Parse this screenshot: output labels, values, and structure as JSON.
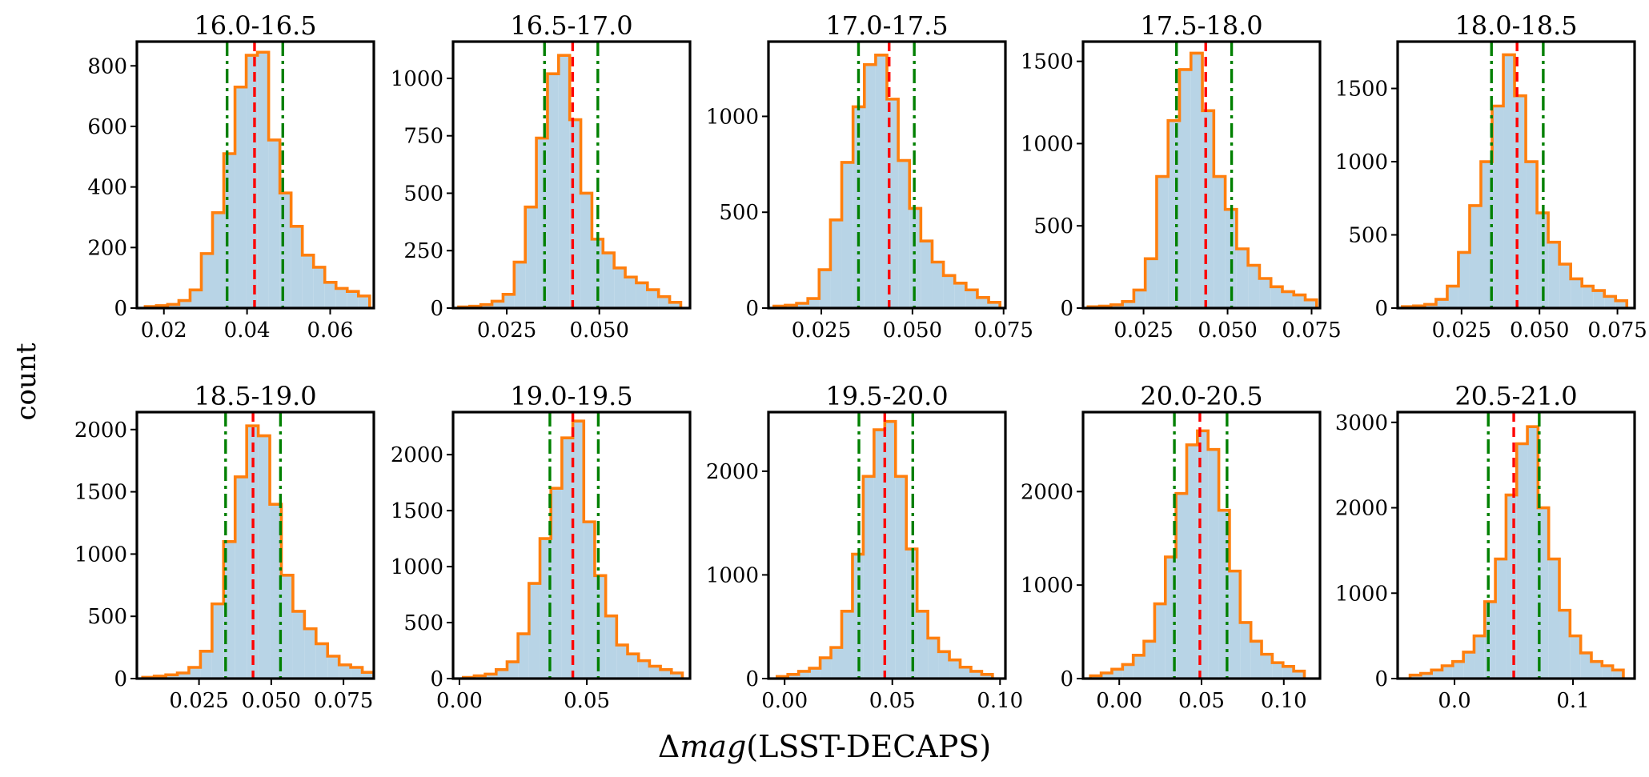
{
  "figure": {
    "ylabel": "count",
    "xlabel": "Δmag(LSST-DECAPS)",
    "xlabel_prefix": "Δ",
    "xlabel_italic": "mag",
    "xlabel_suffix": "(LSST-DECAPS)"
  },
  "colors": {
    "fill": "#b8d4e6",
    "step": "#ff7f0e",
    "median": "#ff0000",
    "bounds": "#008000",
    "frame": "#000000"
  },
  "chart_data": [
    {
      "type": "bar",
      "title": "16.0-16.5",
      "xlim": [
        0.0135,
        0.0705
      ],
      "ylim": [
        0,
        880
      ],
      "xticks": [
        0.02,
        0.04,
        0.06
      ],
      "xtick_labels": [
        "0.02",
        "0.04",
        "0.06"
      ],
      "yticks": [
        0,
        200,
        400,
        600,
        800
      ],
      "ytick_labels": [
        "0",
        "200",
        "400",
        "600",
        "800"
      ],
      "bin_edges": [
        0.0155,
        0.0182,
        0.0209,
        0.0236,
        0.0263,
        0.029,
        0.0317,
        0.0344,
        0.0371,
        0.0398,
        0.0425,
        0.0452,
        0.0479,
        0.0506,
        0.0533,
        0.056,
        0.0587,
        0.0614,
        0.0641,
        0.0668,
        0.0695
      ],
      "counts": [
        5,
        8,
        12,
        25,
        60,
        180,
        315,
        510,
        730,
        835,
        845,
        555,
        380,
        270,
        175,
        135,
        85,
        65,
        55,
        40
      ],
      "median": 0.0418,
      "lower": 0.0352,
      "upper": 0.0486
    },
    {
      "type": "bar",
      "title": "16.5-17.0",
      "xlim": [
        0.0105,
        0.0745
      ],
      "ylim": [
        0,
        1160
      ],
      "xticks": [
        0.025,
        0.05
      ],
      "xtick_labels": [
        "0.025",
        "0.050"
      ],
      "yticks": [
        0,
        250,
        500,
        750,
        1000
      ],
      "ytick_labels": [
        "0",
        "250",
        "500",
        "750",
        "1000"
      ],
      "bin_edges": [
        0.012,
        0.015,
        0.018,
        0.021,
        0.024,
        0.027,
        0.03,
        0.033,
        0.036,
        0.039,
        0.042,
        0.045,
        0.048,
        0.051,
        0.054,
        0.057,
        0.06,
        0.063,
        0.066,
        0.069,
        0.072
      ],
      "counts": [
        5,
        8,
        15,
        30,
        60,
        200,
        440,
        740,
        1020,
        1100,
        820,
        500,
        300,
        240,
        175,
        135,
        110,
        80,
        50,
        25
      ],
      "median": 0.0428,
      "lower": 0.0352,
      "upper": 0.0496
    },
    {
      "type": "bar",
      "title": "17.0-17.5",
      "xlim": [
        0.0105,
        0.0755
      ],
      "ylim": [
        0,
        1390
      ],
      "xticks": [
        0.025,
        0.05,
        0.075
      ],
      "xtick_labels": [
        "0.025",
        "0.050",
        "0.075"
      ],
      "yticks": [
        0,
        500,
        1000
      ],
      "ytick_labels": [
        "0",
        "500",
        "1000"
      ],
      "bin_edges": [
        0.012,
        0.0151,
        0.0182,
        0.0213,
        0.0244,
        0.0275,
        0.0306,
        0.0337,
        0.0368,
        0.0399,
        0.043,
        0.0461,
        0.0492,
        0.0523,
        0.0554,
        0.0585,
        0.0616,
        0.0647,
        0.0678,
        0.0709,
        0.074
      ],
      "counts": [
        10,
        15,
        25,
        50,
        200,
        460,
        760,
        1050,
        1270,
        1320,
        1090,
        770,
        520,
        350,
        240,
        170,
        130,
        95,
        55,
        30
      ],
      "median": 0.0436,
      "lower": 0.0352,
      "upper": 0.0505
    },
    {
      "type": "bar",
      "title": "17.5-18.0",
      "xlim": [
        0.007,
        0.0775
      ],
      "ylim": [
        0,
        1620
      ],
      "xticks": [
        0.025,
        0.05,
        0.075
      ],
      "xtick_labels": [
        "0.025",
        "0.050",
        "0.075"
      ],
      "yticks": [
        0,
        500,
        1000,
        1500
      ],
      "ytick_labels": [
        "0",
        "500",
        "1000",
        "1500"
      ],
      "bin_edges": [
        0.0085,
        0.0119,
        0.0153,
        0.0187,
        0.0221,
        0.0255,
        0.0289,
        0.0323,
        0.0357,
        0.0391,
        0.0425,
        0.0459,
        0.0493,
        0.0527,
        0.0561,
        0.0595,
        0.0629,
        0.0663,
        0.0697,
        0.0731,
        0.0765
      ],
      "counts": [
        8,
        12,
        20,
        40,
        110,
        300,
        800,
        1140,
        1450,
        1550,
        1200,
        800,
        600,
        360,
        260,
        180,
        130,
        100,
        80,
        50
      ],
      "median": 0.0435,
      "lower": 0.0348,
      "upper": 0.0512
    },
    {
      "type": "bar",
      "title": "18.0-18.5",
      "xlim": [
        0.0045,
        0.0805
      ],
      "ylim": [
        0,
        1820
      ],
      "xticks": [
        0.025,
        0.05,
        0.075
      ],
      "xtick_labels": [
        "0.025",
        "0.050",
        "0.075"
      ],
      "yticks": [
        0,
        500,
        1000,
        1500
      ],
      "ytick_labels": [
        "0",
        "500",
        "1000",
        "1500"
      ],
      "bin_edges": [
        0.006,
        0.0096,
        0.0132,
        0.0168,
        0.0204,
        0.024,
        0.0276,
        0.0312,
        0.0348,
        0.0384,
        0.042,
        0.0456,
        0.0492,
        0.0528,
        0.0564,
        0.06,
        0.0636,
        0.0672,
        0.0708,
        0.0744,
        0.078
      ],
      "counts": [
        10,
        15,
        25,
        60,
        150,
        380,
        700,
        1000,
        1380,
        1730,
        1450,
        1000,
        650,
        450,
        300,
        200,
        150,
        120,
        80,
        50
      ],
      "median": 0.0428,
      "lower": 0.0346,
      "upper": 0.0512
    },
    {
      "type": "bar",
      "title": "18.5-19.0",
      "xlim": [
        0.0035,
        0.0855
      ],
      "ylim": [
        0,
        2140
      ],
      "xticks": [
        0.025,
        0.05,
        0.075
      ],
      "xtick_labels": [
        "0.025",
        "0.050",
        "0.075"
      ],
      "yticks": [
        0,
        500,
        1000,
        1500,
        2000
      ],
      "ytick_labels": [
        "0",
        "500",
        "1000",
        "1500",
        "2000"
      ],
      "bin_edges": [
        0.0055,
        0.0095,
        0.0135,
        0.0175,
        0.0215,
        0.0255,
        0.0295,
        0.0335,
        0.0375,
        0.0415,
        0.0455,
        0.0495,
        0.0535,
        0.0575,
        0.0615,
        0.0655,
        0.0695,
        0.0735,
        0.0775,
        0.0815,
        0.0855
      ],
      "counts": [
        10,
        20,
        30,
        45,
        90,
        220,
        600,
        1100,
        1620,
        2030,
        1950,
        1400,
        830,
        540,
        400,
        280,
        180,
        110,
        90,
        50
      ],
      "median": 0.0437,
      "lower": 0.0342,
      "upper": 0.0532
    },
    {
      "type": "bar",
      "title": "19.0-19.5",
      "xlim": [
        -0.0025,
        0.0905
      ],
      "ylim": [
        0,
        2380
      ],
      "xticks": [
        0.0,
        0.05
      ],
      "xtick_labels": [
        "0.00",
        "0.05"
      ],
      "yticks": [
        0,
        500,
        1000,
        1500,
        2000
      ],
      "ytick_labels": [
        "0",
        "500",
        "1000",
        "1500",
        "2000"
      ],
      "bin_edges": [
        0.0015,
        0.0058,
        0.0101,
        0.0144,
        0.0187,
        0.023,
        0.0273,
        0.0316,
        0.0359,
        0.0402,
        0.0445,
        0.0488,
        0.0531,
        0.0574,
        0.0617,
        0.066,
        0.0703,
        0.0746,
        0.0789,
        0.0832,
        0.0875
      ],
      "counts": [
        10,
        25,
        40,
        80,
        150,
        400,
        850,
        1250,
        1700,
        2150,
        2300,
        1400,
        920,
        560,
        300,
        220,
        160,
        110,
        80,
        50
      ],
      "median": 0.0445,
      "lower": 0.0355,
      "upper": 0.0545
    },
    {
      "type": "bar",
      "title": "19.5-20.0",
      "xlim": [
        -0.0075,
        0.1025
      ],
      "ylim": [
        0,
        2570
      ],
      "xticks": [
        0.0,
        0.05,
        0.1
      ],
      "xtick_labels": [
        "0.00",
        "0.05",
        "0.10"
      ],
      "yticks": [
        0,
        1000,
        2000
      ],
      "ytick_labels": [
        "0",
        "1000",
        "2000"
      ],
      "bin_edges": [
        -0.0035,
        0.0015,
        0.0065,
        0.0115,
        0.0165,
        0.0215,
        0.0265,
        0.0315,
        0.0365,
        0.0415,
        0.0465,
        0.0515,
        0.0565,
        0.0615,
        0.0665,
        0.0715,
        0.0765,
        0.0815,
        0.0865,
        0.0915,
        0.0965
      ],
      "counts": [
        20,
        40,
        70,
        100,
        200,
        300,
        650,
        1200,
        1950,
        2400,
        2480,
        1950,
        1250,
        650,
        390,
        260,
        180,
        110,
        70,
        40
      ],
      "median": 0.0465,
      "lower": 0.0345,
      "upper": 0.0595
    },
    {
      "type": "bar",
      "title": "20.0-20.5",
      "xlim": [
        -0.022,
        0.122
      ],
      "ylim": [
        0,
        2850
      ],
      "xticks": [
        0.0,
        0.05,
        0.1
      ],
      "xtick_labels": [
        "0.00",
        "0.05",
        "0.10"
      ],
      "yticks": [
        0,
        1000,
        2000
      ],
      "ytick_labels": [
        "0",
        "1000",
        "2000"
      ],
      "bin_edges": [
        -0.0175,
        -0.011,
        -0.0045,
        0.002,
        0.0085,
        0.015,
        0.0215,
        0.028,
        0.0345,
        0.041,
        0.0475,
        0.054,
        0.0605,
        0.067,
        0.0735,
        0.08,
        0.0865,
        0.093,
        0.0995,
        0.106,
        0.1125
      ],
      "counts": [
        30,
        60,
        100,
        150,
        250,
        400,
        800,
        1300,
        1980,
        2500,
        2650,
        2450,
        1800,
        1150,
        600,
        400,
        260,
        170,
        130,
        80
      ],
      "median": 0.049,
      "lower": 0.0335,
      "upper": 0.0655
    },
    {
      "type": "bar",
      "title": "20.5-21.0",
      "xlim": [
        -0.048,
        0.152
      ],
      "ylim": [
        0,
        3120
      ],
      "xticks": [
        0.0,
        0.1
      ],
      "xtick_labels": [
        "0.0",
        "0.1"
      ],
      "yticks": [
        0,
        1000,
        2000,
        3000
      ],
      "ytick_labels": [
        "0",
        "1000",
        "2000",
        "3000"
      ],
      "bin_edges": [
        -0.0375,
        -0.0285,
        -0.0195,
        -0.0105,
        -0.0015,
        0.0075,
        0.0165,
        0.0255,
        0.0345,
        0.0435,
        0.0525,
        0.0615,
        0.0705,
        0.0795,
        0.0885,
        0.0975,
        0.1065,
        0.1155,
        0.1245,
        0.1335,
        0.1425
      ],
      "counts": [
        40,
        60,
        100,
        150,
        200,
        310,
        500,
        900,
        1400,
        2150,
        2750,
        2950,
        2000,
        1400,
        800,
        500,
        300,
        200,
        150,
        100
      ],
      "median": 0.05,
      "lower": 0.0285,
      "upper": 0.0715
    }
  ]
}
